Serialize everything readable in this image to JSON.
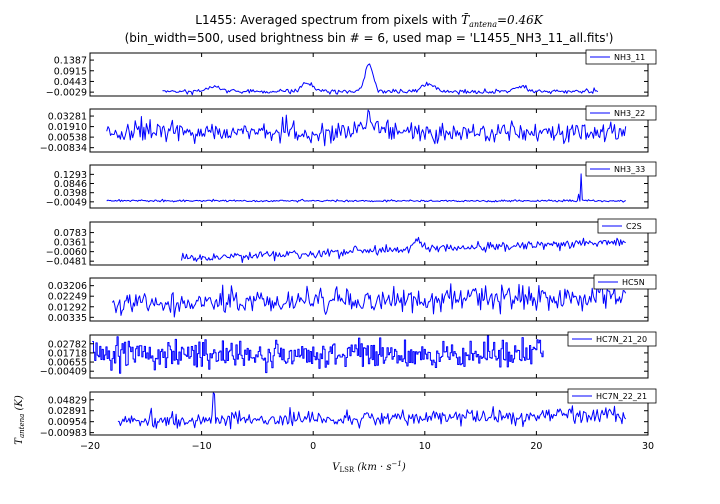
{
  "figure": {
    "title": "L1455: Averaged spectrum from pixels with $\\overline{T}_{antena}=0.46K$",
    "subtitle": "(bin_width=500, used brightness bin # = 6, used map = 'L1455_NH3_11_all.fits')",
    "xlabel": "V_LSR (km·s⁻¹)",
    "ylabel": "T_antena (K)"
  },
  "chart_data": [
    {
      "type": "line",
      "legend": "NH3_11",
      "xlim": [
        -20,
        30
      ],
      "ylim": [
        -0.02,
        0.17
      ],
      "yticks": [
        -0.0029,
        0.0443,
        0.0915,
        0.1387
      ],
      "ytick_labels": [
        "−0.0029",
        "0.0443",
        "0.0915",
        "0.1387"
      ],
      "x_range": [
        -13.5,
        25.5
      ],
      "baseline": 0.0,
      "noise": 0.005,
      "seed": 11,
      "peaks": [
        {
          "x": -8.8,
          "amp": 0.022,
          "w": 0.5
        },
        {
          "x": -0.5,
          "amp": 0.035,
          "w": 0.55
        },
        {
          "x": 5.0,
          "amp": 0.125,
          "w": 0.35
        },
        {
          "x": 10.3,
          "amp": 0.035,
          "w": 0.55
        },
        {
          "x": 18.7,
          "amp": 0.022,
          "w": 0.5
        }
      ],
      "spikes": [],
      "style": "line"
    },
    {
      "type": "line",
      "legend": "NH3_22",
      "xlim": [
        -20,
        30
      ],
      "ylim": [
        -0.014,
        0.042
      ],
      "yticks": [
        -0.00834,
        0.00538,
        0.0191,
        0.03281
      ],
      "ytick_labels": [
        "−0.00834",
        "0.00538",
        "0.01910",
        "0.03281"
      ],
      "x_range": [
        -18.5,
        28.0
      ],
      "baseline": 0.012,
      "noise": 0.0065,
      "seed": 22,
      "peaks": [
        {
          "x": 5.0,
          "amp": 0.015,
          "w": 0.6
        }
      ],
      "spikes": [],
      "style": "line"
    },
    {
      "type": "line",
      "legend": "NH3_33",
      "xlim": [
        -20,
        30
      ],
      "ylim": [
        -0.035,
        0.175
      ],
      "yticks": [
        -0.0049,
        0.0398,
        0.0846,
        0.1293
      ],
      "ytick_labels": [
        "−0.0049",
        "0.0398",
        "0.0846",
        "0.1293"
      ],
      "x_range": [
        -18.5,
        28.0
      ],
      "baseline": 0.0,
      "noise": 0.0025,
      "seed": 33,
      "peaks": [],
      "spikes": [
        {
          "x": 24.0,
          "amp": 0.135
        },
        {
          "x": 23.8,
          "amp": 0.03
        }
      ],
      "style": "line"
    },
    {
      "type": "line",
      "legend": "C2S",
      "xlim": [
        -20,
        30
      ],
      "ylim": [
        -0.065,
        0.125
      ],
      "yticks": [
        -0.0481,
        -0.006,
        0.0361,
        0.0783
      ],
      "ytick_labels": [
        "−0.0481",
        "−0.0060",
        "0.0361",
        "0.0783"
      ],
      "x_range": [
        -11.8,
        28.0
      ],
      "baseline_start": -0.035,
      "baseline_end": 0.04,
      "noise": 0.01,
      "seed": 44,
      "peaks": [
        {
          "x": 9.3,
          "amp": 0.045,
          "w": 0.35
        }
      ],
      "spikes": [],
      "style": "line"
    },
    {
      "type": "line",
      "legend": "HC5N",
      "xlim": [
        -20,
        30
      ],
      "ylim": [
        0.0,
        0.039
      ],
      "yticks": [
        0.00335,
        0.01292,
        0.02249,
        0.03206
      ],
      "ytick_labels": [
        "0.00335",
        "0.01292",
        "0.02249",
        "0.03206"
      ],
      "x_range": [
        -18.0,
        28.0
      ],
      "baseline_start": 0.016,
      "baseline_end": 0.022,
      "noise": 0.0055,
      "seed": 55,
      "peaks": [],
      "spikes": [],
      "style": "line"
    },
    {
      "type": "line",
      "legend": "HC7N_21_20",
      "xlim": [
        -20,
        30
      ],
      "ylim": [
        -0.012,
        0.038
      ],
      "yticks": [
        -0.00409,
        0.00655,
        0.01718,
        0.02782
      ],
      "ytick_labels": [
        "−0.00409",
        "0.00655",
        "0.01718",
        "0.02782"
      ],
      "x_range": [
        -19.8,
        20.6
      ],
      "baseline": 0.015,
      "noise": 0.0085,
      "seed": 66,
      "peaks": [],
      "spikes": [],
      "style": "step"
    },
    {
      "type": "line",
      "legend": "HC7N_22_21",
      "xlim": [
        -20,
        30
      ],
      "ylim": [
        -0.014,
        0.062
      ],
      "yticks": [
        -0.00983,
        0.00954,
        0.02891,
        0.04829
      ],
      "ytick_labels": [
        "−0.00983",
        "0.00954",
        "0.02891",
        "0.04829"
      ],
      "x_range": [
        -17.5,
        28.0
      ],
      "baseline_start": 0.01,
      "baseline_end": 0.022,
      "noise": 0.0065,
      "seed": 77,
      "peaks": [],
      "spikes": [
        {
          "x": -8.9,
          "amp": 0.045
        }
      ],
      "style": "line"
    }
  ],
  "x_axis": {
    "ticks": [
      -20,
      -10,
      0,
      10,
      20,
      30
    ],
    "tick_labels": [
      "−20",
      "−10",
      "0",
      "10",
      "20",
      "30"
    ]
  },
  "colors": {
    "trace": "#0000ff",
    "frame": "#000000",
    "background": "#ffffff"
  }
}
